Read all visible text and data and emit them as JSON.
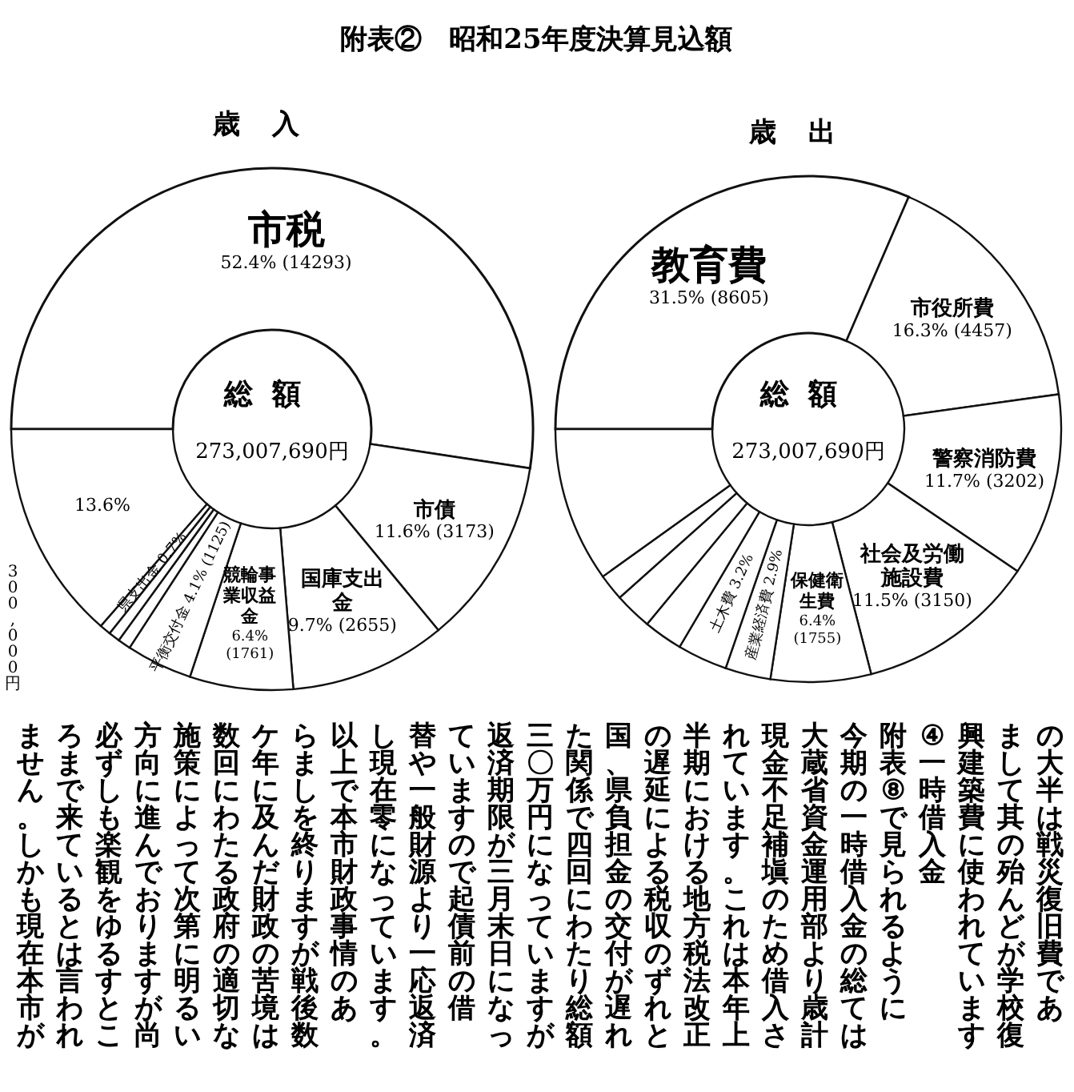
{
  "chart_data": [
    {
      "type": "donut",
      "title": "附表②　昭和25年度決算見込額",
      "subtitle": "歳入",
      "categories": [
        "市税",
        "市債",
        "国庫支出金",
        "競輪事業収益金",
        "平衡交付金",
        null,
        null,
        "県支出金",
        null
      ],
      "values": [
        52.4,
        11.6,
        9.7,
        6.4,
        4.1,
        0.8,
        0.7,
        0.7,
        13.6
      ],
      "value_labels": [
        "52.4% (14293)",
        "11.6% (3173)",
        "9.7% (2655)",
        "6.4% (1761)",
        "4.1% (1125)",
        null,
        null,
        "0.7%",
        "13.6%"
      ],
      "colors": [
        "#ffffff",
        "#ffffff",
        "#ffffff",
        "#ffffff",
        "#ffffff",
        "#ffffff",
        "#ffffff",
        "#ffffff",
        "#ffffff"
      ],
      "annotations": [
        "総額",
        "273,007,690円",
        "300,000円"
      ]
    },
    {
      "type": "donut",
      "subtitle": "歳出",
      "categories": [
        "教育費",
        "市役所費",
        "警察消防費",
        "社会及労働施設費",
        "保健衛生費",
        "産業経済費",
        "土木費",
        null,
        null,
        null,
        null
      ],
      "values": [
        31.5,
        16.3,
        11.7,
        11.5,
        6.4,
        2.9,
        3.2,
        2.5,
        2.4,
        1.7,
        9.9
      ],
      "value_labels": [
        "31.5% (8605)",
        "16.3% (4457)",
        "11.7% (3202)",
        "11.5% (3150)",
        "6.4% (1755)",
        "2.9%",
        "3.2%",
        null,
        null,
        null,
        null
      ],
      "colors": [
        "#ffffff",
        "#ffffff",
        "#ffffff",
        "#ffffff",
        "#ffffff",
        "#ffffff",
        "#ffffff",
        "#ffffff",
        "#ffffff",
        "#ffffff",
        "#ffffff"
      ],
      "annotations": [
        "総額",
        "273,007,690円"
      ]
    },
    {
      "type": "other",
      "annotations": [
        "の大半は戦災復旧費であ",
        "まして其の殆んどが学校復",
        "興建築費に使われています",
        "④一時借入金",
        "附表⑧で見られるように",
        "今期の一時借入金の総ては",
        "大蔵省資金運用部より歳計",
        "現金不足補塡のため借入さ",
        "れています。これは本年上",
        "半期における地方税法改正",
        "の遅延による税収のずれと",
        "国、県負担金の交付が遅れ",
        "た関係で四回にわたり総額",
        "三〇万円になっていますが",
        "返済期限が三月末日になっ",
        "ていますので起債前の借",
        "替や一般財源より一応返済",
        "し現在零になっています。",
        "以上で本市財政事情のあ",
        "らましを終りますが戦後数",
        "ケ年に及んだ財政の苦境は",
        "数回にわたる政府の適切な",
        "施策によって次第に明るい",
        "方向に進んでおりますが尚",
        "必ずしも楽観をゆるすとこ",
        "ろまで来ているとは言われ",
        "ません。しかも現在本市が"
      ]
    }
  ]
}
